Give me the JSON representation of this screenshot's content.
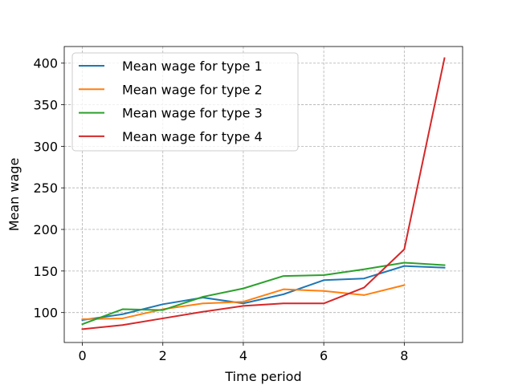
{
  "chart_data": {
    "type": "line",
    "xlabel": "Time period",
    "ylabel": "Mean wage",
    "xlim": [
      -0.45,
      9.45
    ],
    "ylim": [
      64,
      420
    ],
    "xticks": [
      0,
      2,
      4,
      6,
      8
    ],
    "yticks": [
      100,
      150,
      200,
      250,
      300,
      350,
      400
    ],
    "grid": true,
    "legend_position": "upper-left",
    "series": [
      {
        "name": "Mean wage for type 1",
        "color": "#1f77b4",
        "x": [
          0,
          1,
          2,
          3,
          4,
          5,
          6,
          7,
          8,
          9
        ],
        "y": [
          91,
          98,
          110,
          118,
          111,
          122,
          139,
          141,
          156,
          154
        ]
      },
      {
        "name": "Mean wage for type 2",
        "color": "#ff7f0e",
        "x": [
          0,
          1,
          2,
          3,
          4,
          5,
          6,
          7,
          8
        ],
        "y": [
          92,
          93,
          104,
          111,
          113,
          128,
          126,
          121,
          133
        ]
      },
      {
        "name": "Mean wage for type 3",
        "color": "#2ca02c",
        "x": [
          0,
          1,
          2,
          3,
          4,
          5,
          6,
          7,
          8,
          9
        ],
        "y": [
          86,
          104,
          103,
          119,
          129,
          144,
          145,
          152,
          160,
          157
        ]
      },
      {
        "name": "Mean wage for type 4",
        "color": "#d62728",
        "x": [
          0,
          1,
          2,
          3,
          4,
          5,
          6,
          7,
          8,
          9
        ],
        "y": [
          80,
          85,
          93,
          101,
          108,
          111,
          111,
          130,
          176,
          406
        ]
      }
    ]
  }
}
